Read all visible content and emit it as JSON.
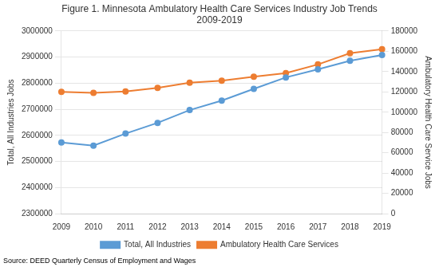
{
  "chart_data": {
    "type": "line",
    "title": "Figure 1. Minnesota Ambulatory Health Care Services Industry Job Trends\n2009-2019",
    "source": "Source: DEED Quarterly Census of Employment and Wages",
    "ylabel": "Total, All Industries Jobs",
    "y2label": "Ambulatory Health Care Service Jobs",
    "categories": [
      "2009",
      "2010",
      "2011",
      "2012",
      "2013",
      "2014",
      "2015",
      "2016",
      "2017",
      "2018",
      "2019"
    ],
    "series": [
      {
        "name": "Total, All Industries",
        "color": "#5B9BD5",
        "marker": "circle",
        "values": [
          2573000,
          2561000,
          2607000,
          2648000,
          2697000,
          2733000,
          2778000,
          2822000,
          2853000,
          2886000,
          2908000
        ]
      },
      {
        "name": "Ambulatory Health Care Services",
        "color": "#ED7D31",
        "marker": "circle",
        "axis": "y2",
        "values": [
          120000,
          119000,
          120500,
          124000,
          129000,
          131000,
          135000,
          138500,
          147000,
          158000,
          162000
        ]
      }
    ],
    "ylim": [
      2300000,
      3000000
    ],
    "yticks": [
      2300000,
      2400000,
      2500000,
      2600000,
      2700000,
      2800000,
      2900000,
      3000000
    ],
    "y2lim": [
      0,
      180000
    ],
    "y2ticks": [
      0,
      20000,
      40000,
      60000,
      80000,
      100000,
      120000,
      140000,
      160000,
      180000
    ],
    "grid": true,
    "legend": "bottom"
  }
}
